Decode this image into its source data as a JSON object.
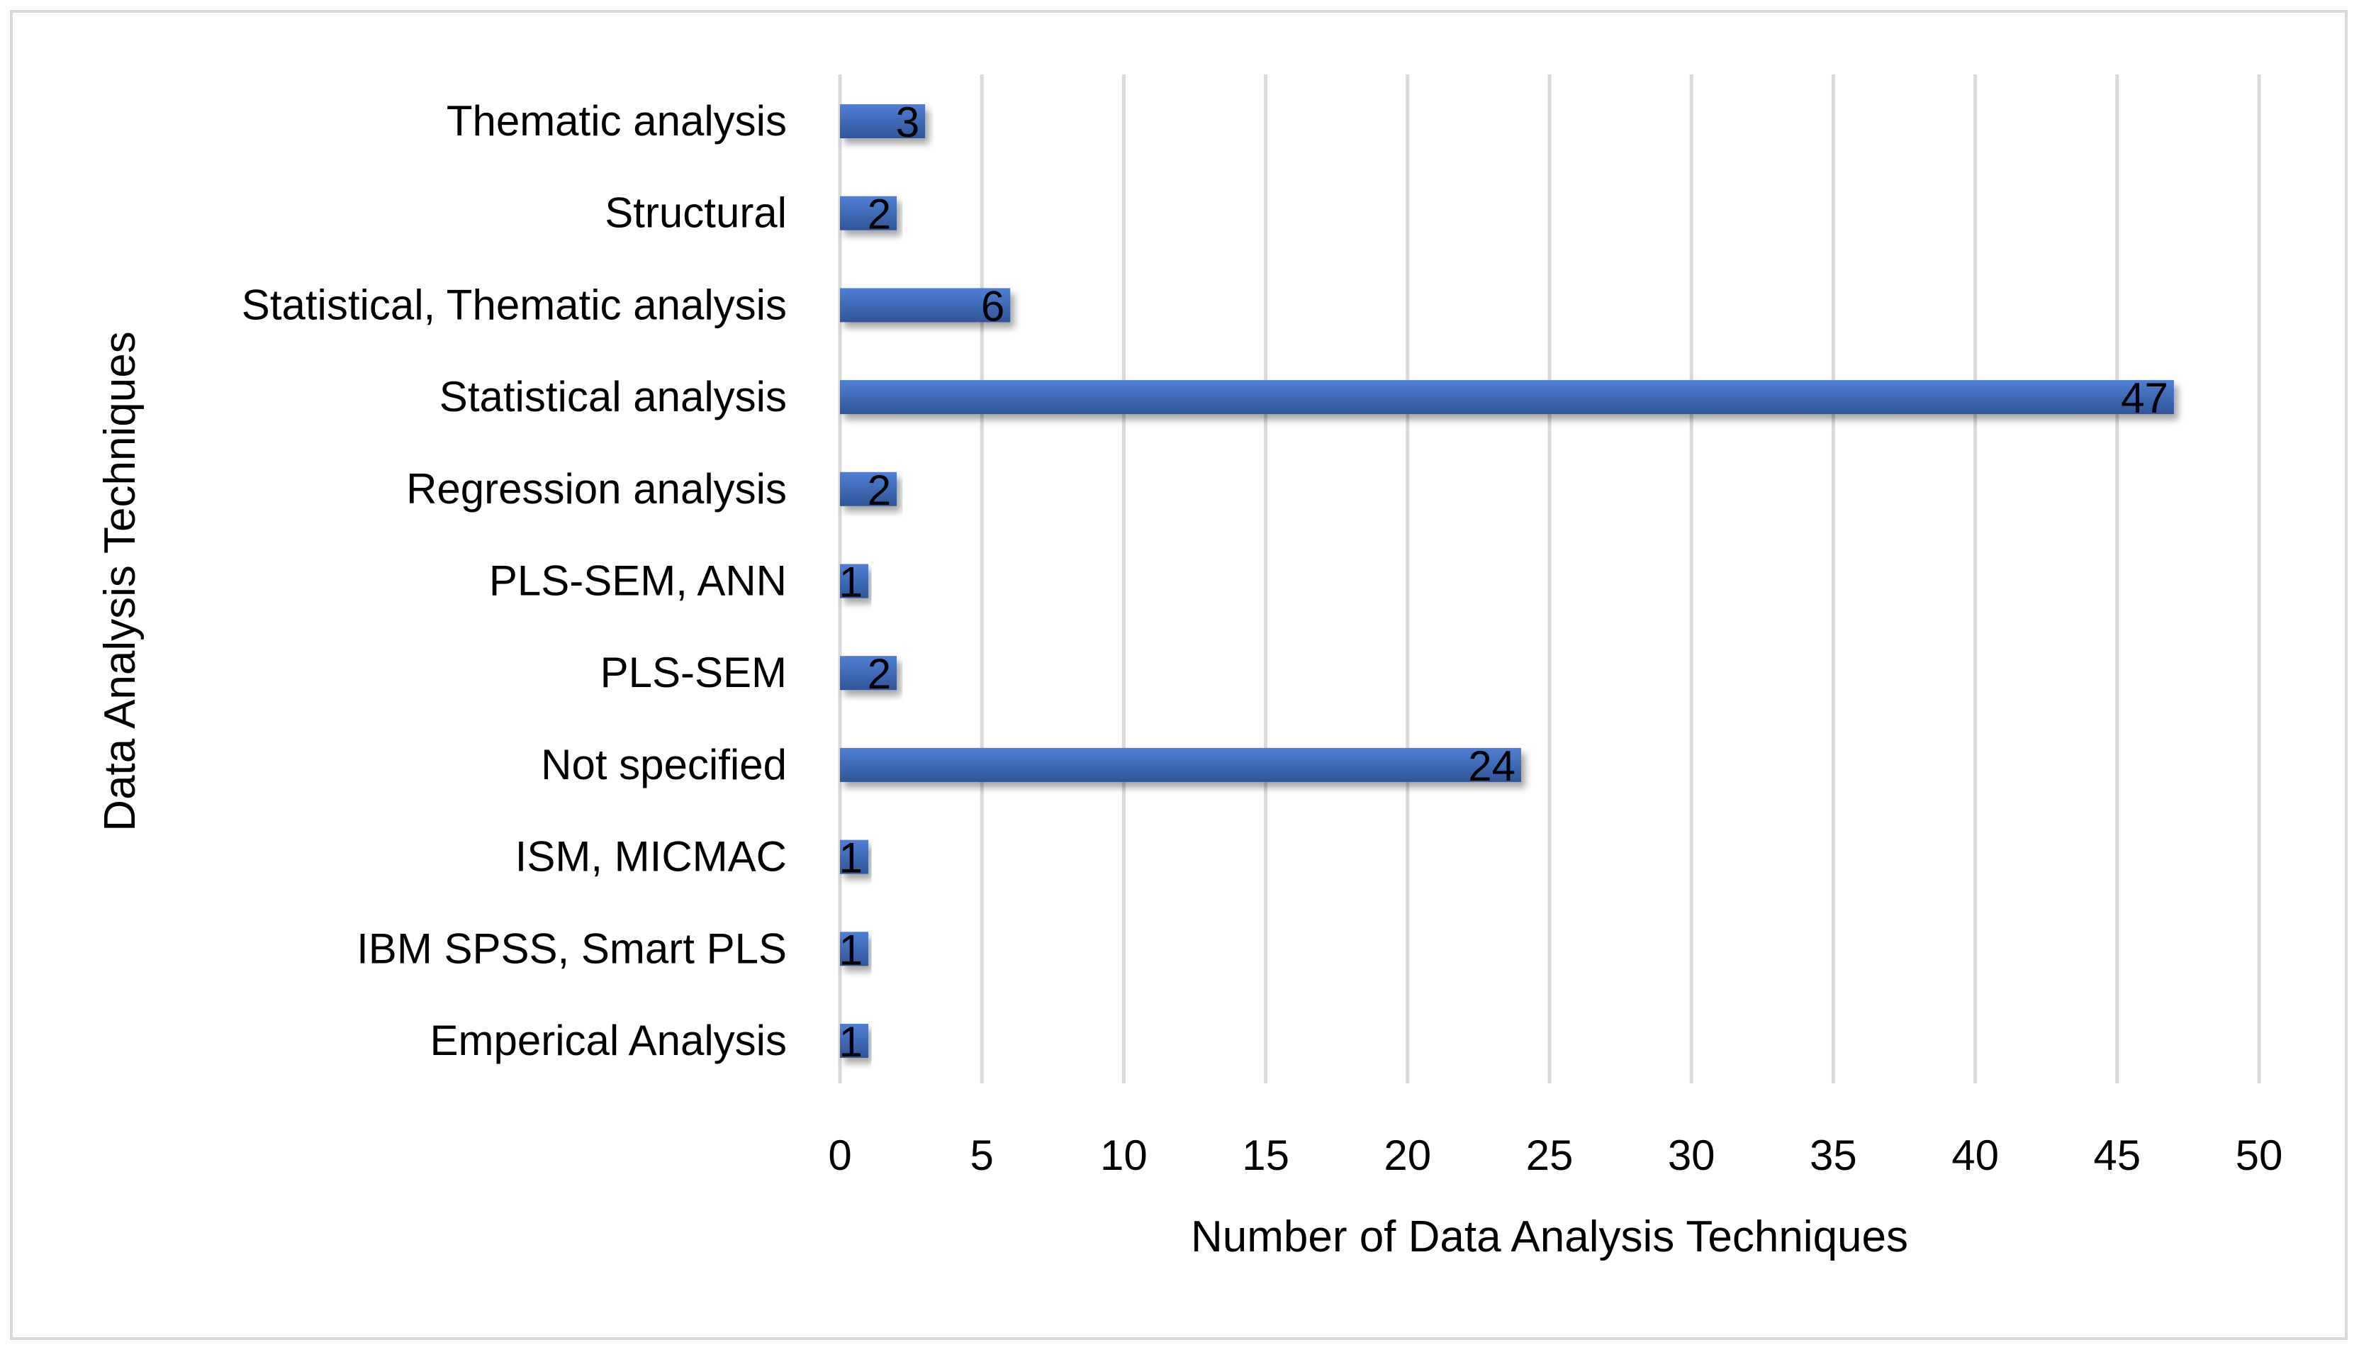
{
  "chart_data": {
    "type": "bar",
    "orientation": "horizontal",
    "categories": [
      "Emperical Analysis",
      "IBM SPSS, Smart PLS",
      "ISM, MICMAC",
      "Not specified",
      "PLS-SEM",
      "PLS-SEM, ANN",
      "Regression analysis",
      "Statistical analysis",
      "Statistical, Thematic analysis",
      "Structural",
      "Thematic analysis"
    ],
    "values": [
      1,
      1,
      1,
      24,
      2,
      1,
      2,
      47,
      6,
      2,
      3
    ],
    "data_labels": [
      "1",
      "1",
      "1",
      "24",
      "2",
      "1",
      "2",
      "47",
      "6",
      "2",
      "3"
    ],
    "title": "",
    "xlabel": "Number of Data Analysis Techniques",
    "ylabel": "Data Analysis Techniques",
    "xlim": [
      0,
      50
    ],
    "xticks": [
      "0",
      "5",
      "10",
      "15",
      "20",
      "25",
      "30",
      "35",
      "40",
      "45",
      "50"
    ],
    "grid": "vertical",
    "legend": "none",
    "bar_color": "#4472c4",
    "bar_color_dark": "#2f5597",
    "grid_color": "#d9d9d9"
  }
}
